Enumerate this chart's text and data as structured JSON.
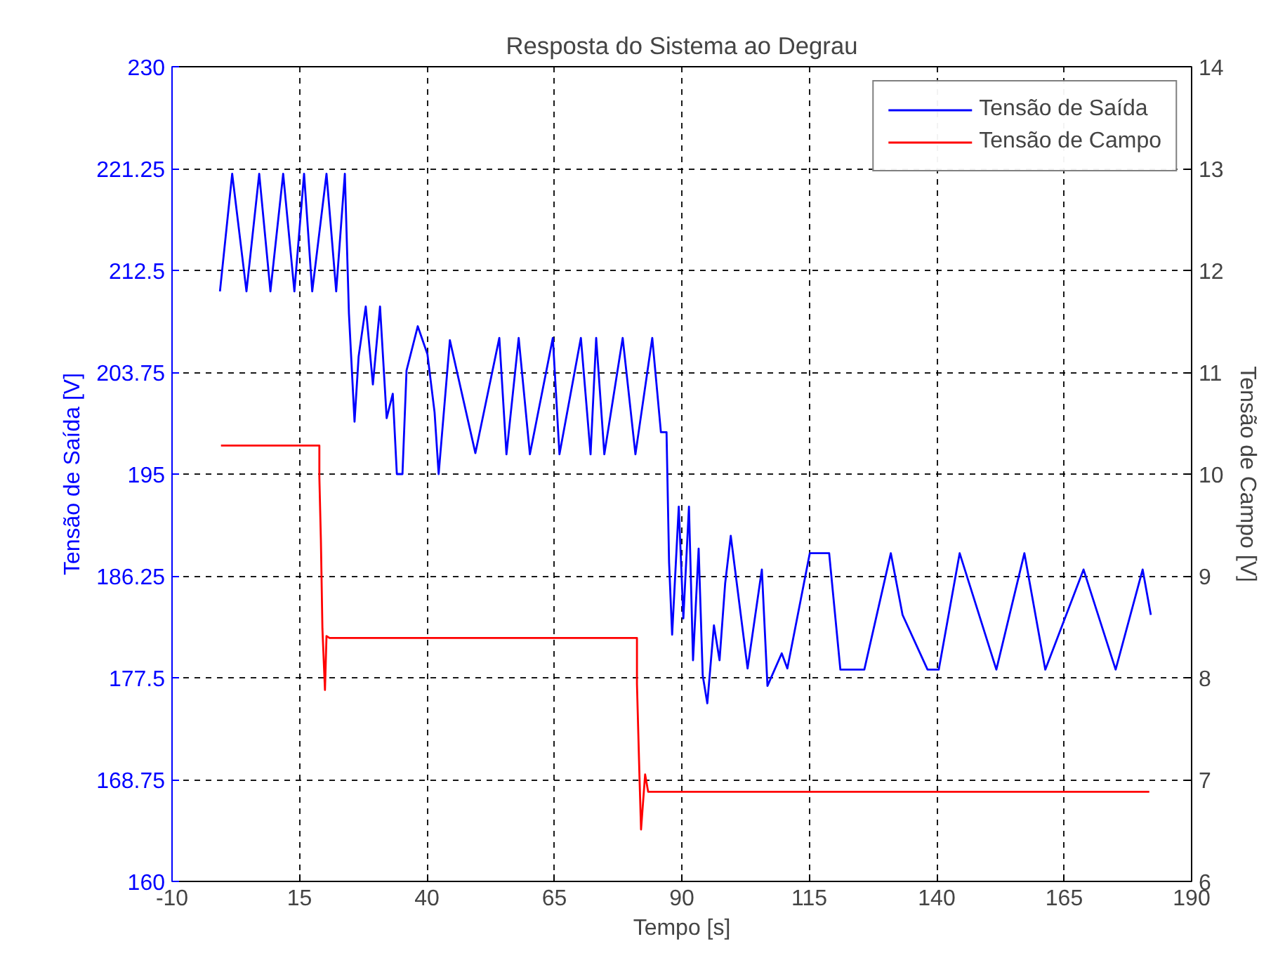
{
  "chart_data": {
    "type": "line",
    "title": "Resposta do Sistema ao Degrau",
    "xlabel": "Tempo [s]",
    "ylabel": "Tensão de Saída [V]",
    "y2label": "Tensão de Campo [V]",
    "xlim": [
      -10,
      190
    ],
    "xticks": [
      -10,
      15,
      40,
      65,
      90,
      115,
      140,
      165,
      190
    ],
    "ylim": [
      160,
      230
    ],
    "yticks": [
      160,
      168.75,
      177.5,
      186.25,
      195,
      203.75,
      212.5,
      221.25,
      230
    ],
    "y2lim": [
      6,
      14
    ],
    "y2ticks": [
      6,
      7,
      8,
      9,
      10,
      11,
      12,
      13,
      14
    ],
    "grid": true,
    "legend": "top right",
    "line_style": "solid",
    "marker": "none",
    "series": [
      {
        "name": "Tensão de Saída",
        "color": "#0000ff",
        "x": [
          -0.6,
          1.8,
          4.6,
          7.1,
          9.3,
          11.8,
          14.0,
          15.9,
          17.5,
          20.3,
          22.2,
          23.9,
          24.7,
          25.8,
          26.6,
          28.0,
          29.4,
          30.8,
          32.1,
          33.3,
          34.1,
          35.2,
          36.0,
          38.2,
          40.1,
          41.5,
          42.3,
          44.5,
          49.5,
          54.2,
          55.6,
          58.0,
          60.2,
          64.7,
          66.0,
          70.2,
          72.1,
          73.2,
          74.8,
          78.4,
          80.9,
          84.2,
          85.9,
          87.0,
          87.5,
          88.1,
          89.4,
          90.3,
          91.4,
          92.2,
          93.3,
          94.1,
          95.0,
          96.3,
          97.4,
          98.5,
          99.6,
          102.9,
          105.7,
          106.8,
          109.6,
          110.7,
          115.1,
          118.9,
          121.1,
          125.8,
          131.0,
          133.3,
          138.2,
          140.4,
          144.5,
          151.7,
          157.2,
          161.3,
          168.8,
          175.1,
          180.4,
          182.0
        ],
        "values": [
          210.7,
          220.8,
          210.7,
          220.8,
          210.7,
          220.8,
          210.7,
          220.8,
          210.7,
          220.8,
          210.7,
          220.8,
          208.8,
          199.5,
          205.1,
          209.4,
          202.7,
          209.4,
          199.8,
          201.9,
          195.0,
          195.0,
          203.9,
          207.7,
          205.3,
          200.3,
          195.0,
          206.5,
          196.8,
          206.7,
          196.7,
          206.7,
          196.7,
          206.7,
          196.7,
          206.7,
          196.7,
          206.7,
          196.7,
          206.7,
          196.7,
          206.7,
          198.6,
          198.6,
          187.4,
          181.2,
          192.2,
          182.6,
          192.2,
          179.0,
          188.6,
          177.7,
          175.3,
          182.0,
          179.0,
          185.6,
          189.7,
          178.3,
          186.8,
          176.8,
          179.6,
          178.3,
          188.2,
          188.2,
          178.2,
          178.2,
          188.2,
          182.9,
          178.2,
          178.2,
          188.2,
          178.2,
          188.2,
          178.2,
          186.8,
          178.2,
          186.8,
          182.9
        ]
      },
      {
        "name": "Tensão de Campo",
        "color": "#ff0000",
        "axis": "y2",
        "x": [
          -0.4,
          18.9,
          18.9,
          19.2,
          19.5,
          20.0,
          20.3,
          20.9,
          81.2,
          81.2,
          81.7,
          82.0,
          82.8,
          83.4,
          181.7
        ],
        "values": [
          10.28,
          10.28,
          9.97,
          9.35,
          8.48,
          7.88,
          8.41,
          8.39,
          8.39,
          7.94,
          7.02,
          6.51,
          7.05,
          6.88,
          6.88
        ]
      }
    ]
  }
}
